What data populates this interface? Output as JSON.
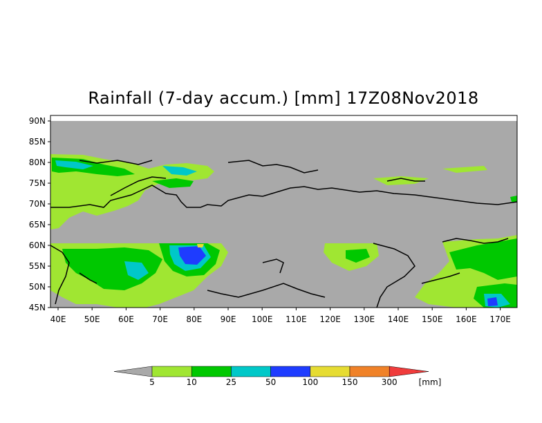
{
  "title": "Rainfall (7-day accum.) [mm] 17Z08Nov2018",
  "map": {
    "lat_labels": [
      "90N",
      "85N",
      "80N",
      "75N",
      "70N",
      "65N",
      "60N",
      "55N",
      "50N",
      "45N"
    ],
    "lon_labels": [
      "40E",
      "50E",
      "60E",
      "70E",
      "80E",
      "90E",
      "100E",
      "110E",
      "120E",
      "130E",
      "140E",
      "150E",
      "160E",
      "170E"
    ],
    "no_data_color": "#a9a9a9",
    "coastline_color": "#000000"
  },
  "legend": {
    "thresholds": [
      "5",
      "10",
      "25",
      "50",
      "100",
      "150",
      "300"
    ],
    "unit": "[mm]",
    "colors": {
      "below": "#a9a9a9",
      "bins": [
        "#a0e632",
        "#00c800",
        "#00c8c8",
        "#1e3cff",
        "#e6dc32",
        "#f08228"
      ],
      "above": "#f03c3c"
    }
  }
}
